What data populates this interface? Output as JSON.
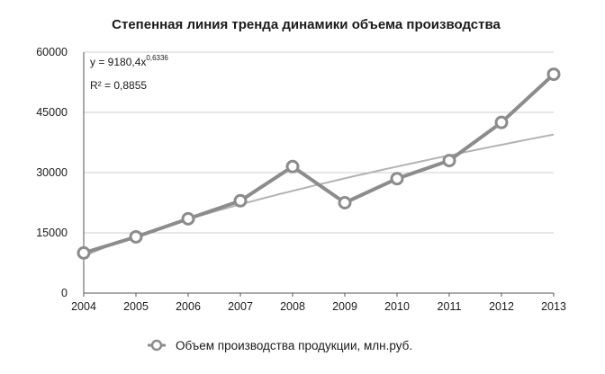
{
  "chart_data": {
    "type": "line",
    "title": "Степенная линия тренда динамики объема производства",
    "xlabel": "",
    "ylabel": "",
    "categories": [
      "2004",
      "2005",
      "2006",
      "2007",
      "2008",
      "2009",
      "2010",
      "2011",
      "2012",
      "2013"
    ],
    "series": [
      {
        "name": "Объем производства продукции, млн.руб.",
        "values": [
          10000,
          14000,
          18500,
          23000,
          31500,
          22500,
          28500,
          33000,
          42500,
          54500
        ],
        "color": "#8c8c8c"
      }
    ],
    "trendline": {
      "type": "power",
      "equation_prefix": "y = 9180,4x",
      "equation_exponent": "0,6336",
      "r_squared_label": "R² = 0,8855",
      "coefficient": 9180.4,
      "exponent": 0.6336,
      "color": "#b3b3b3"
    },
    "y_ticks": [
      "0",
      "15000",
      "30000",
      "45000",
      "60000"
    ],
    "ylim": [
      0,
      60000
    ],
    "grid": true,
    "legend_position": "bottom"
  }
}
